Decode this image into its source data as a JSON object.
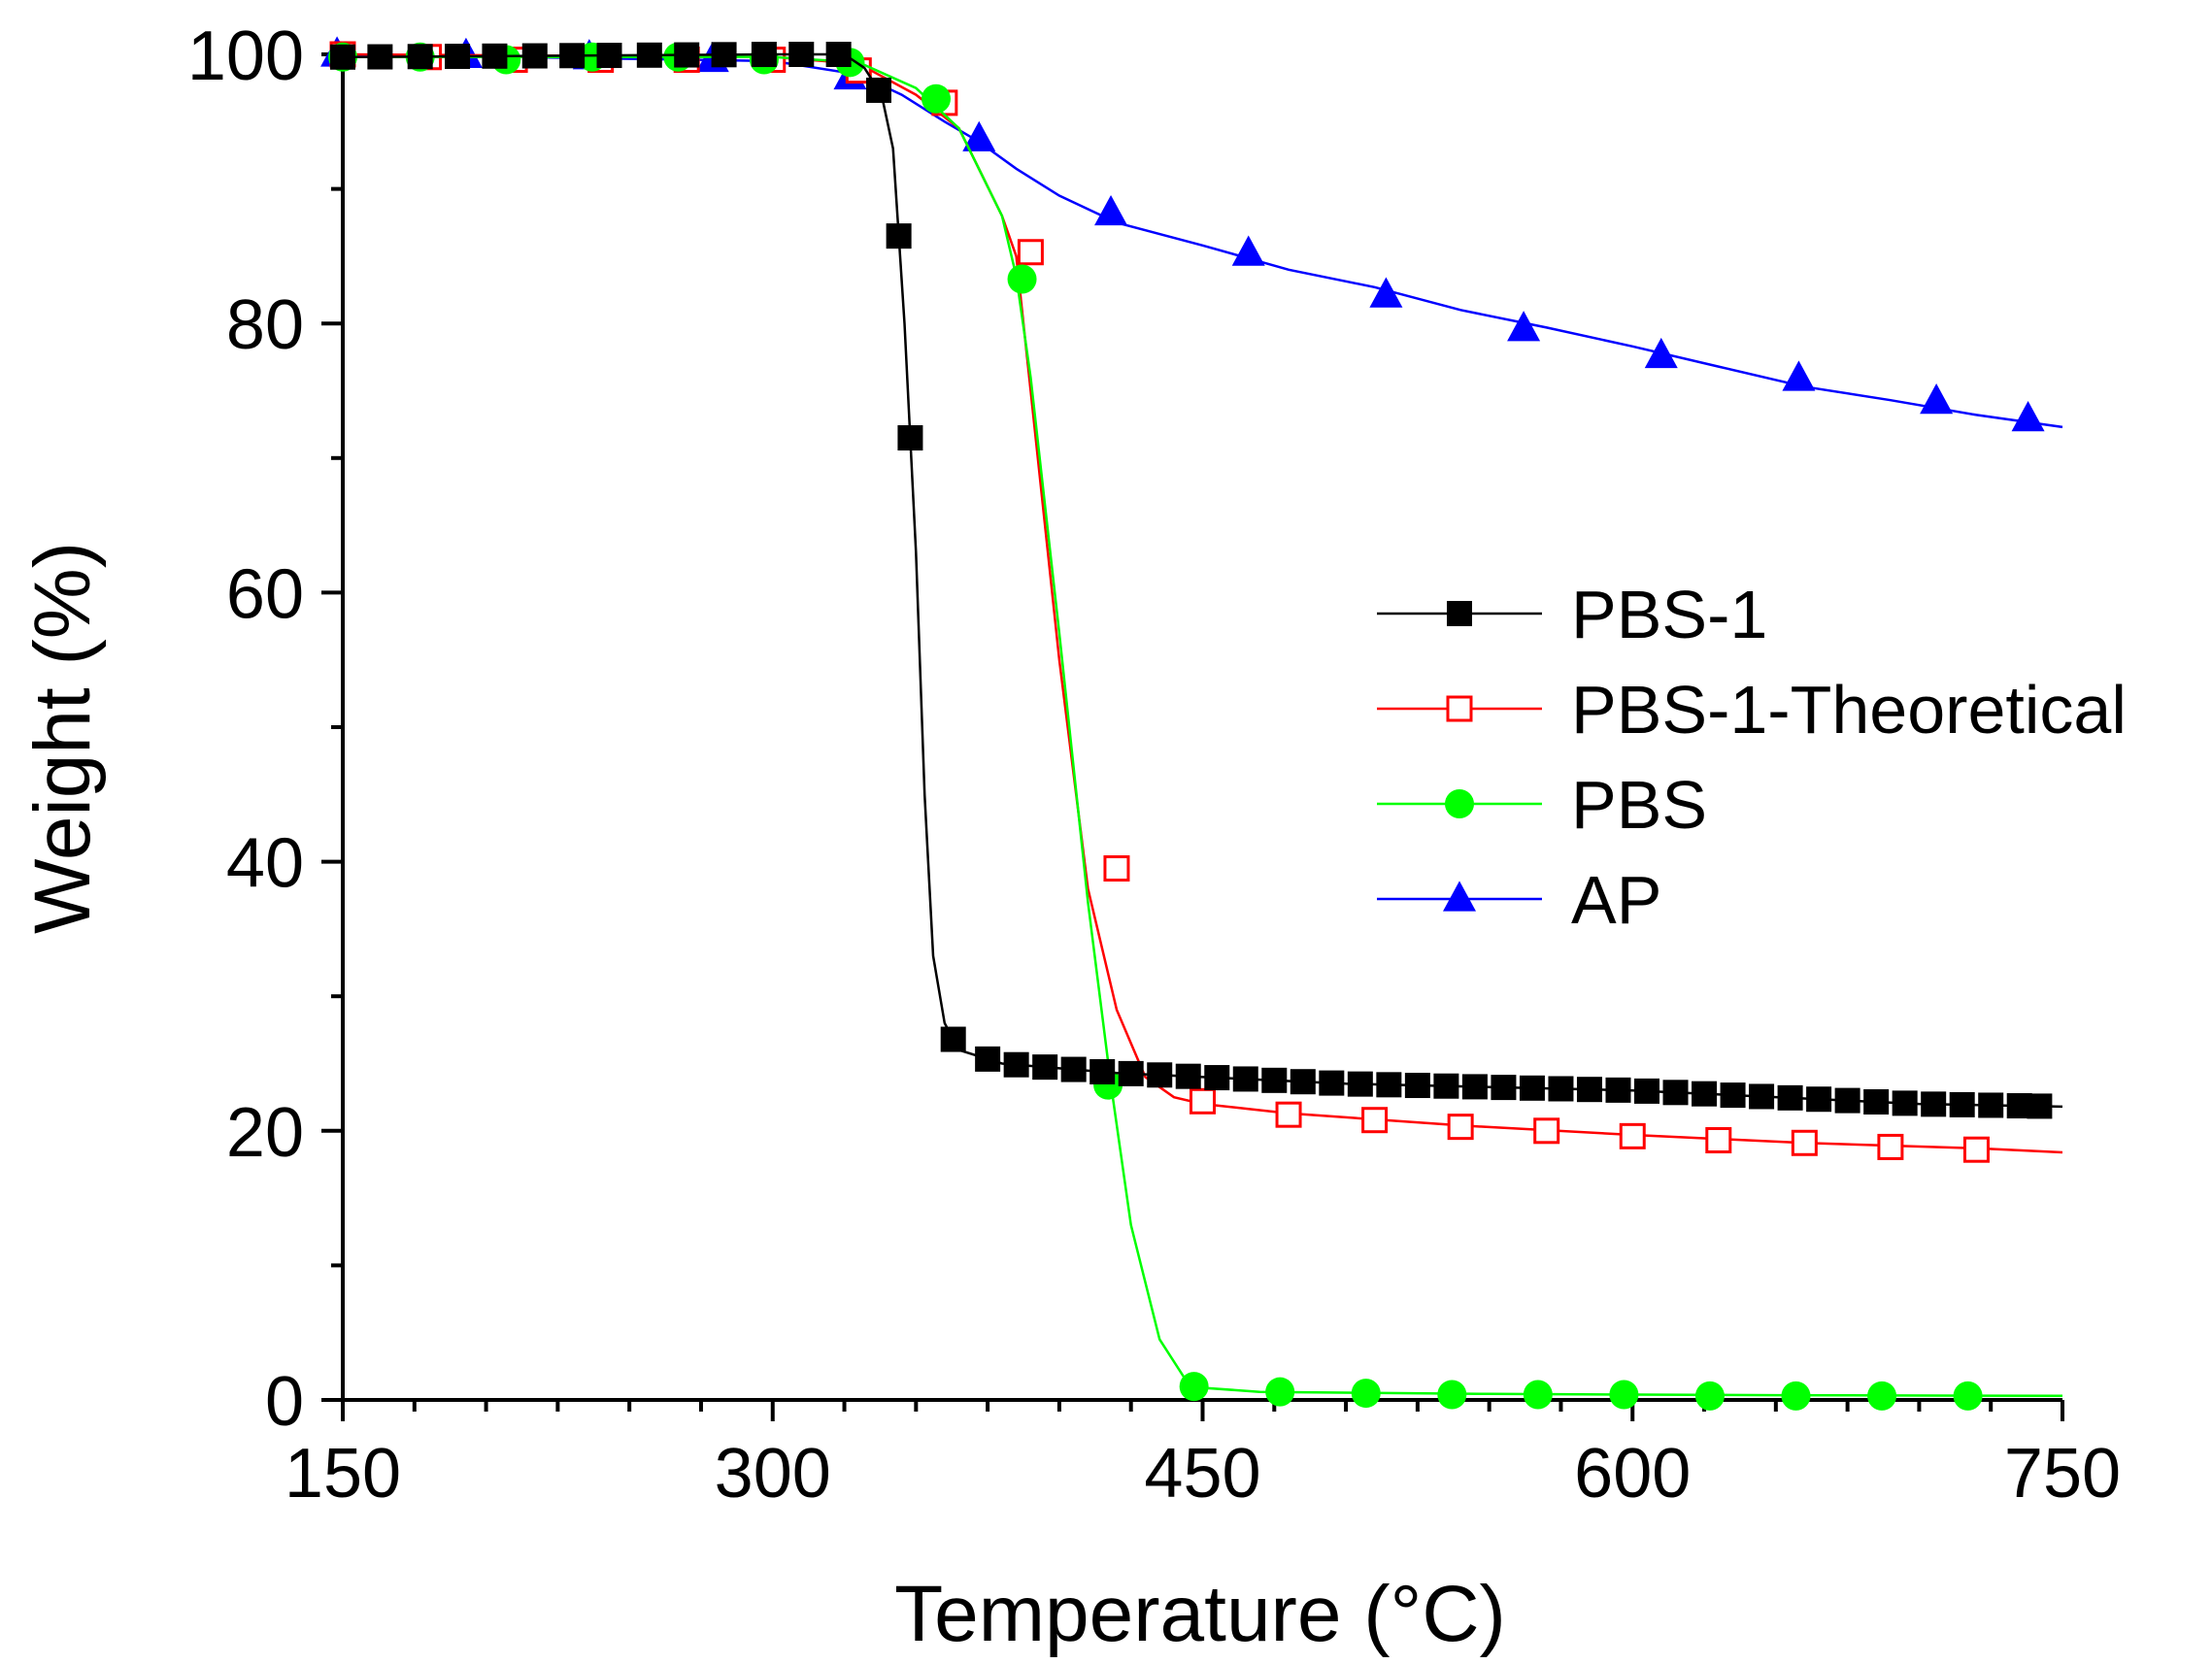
{
  "chart_data": {
    "type": "line",
    "title": "",
    "xlabel": "Temperature (°C)",
    "ylabel": "Weight (%)",
    "xlim": [
      150,
      750
    ],
    "ylim": [
      0,
      100
    ],
    "xticks": [
      150,
      300,
      450,
      600,
      750
    ],
    "yticks": [
      0,
      20,
      40,
      60,
      80,
      100
    ],
    "x_minor_step": 25,
    "y_minor_step": 10,
    "grid": false,
    "legend_position": "center-right",
    "series": [
      {
        "name": "PBS-1",
        "color": "#000000",
        "marker": "square-filled",
        "curve": [
          [
            150,
            99.8
          ],
          [
            300,
            100
          ],
          [
            325,
            100
          ],
          [
            332,
            99
          ],
          [
            338,
            97
          ],
          [
            342,
            93
          ],
          [
            346,
            80
          ],
          [
            350,
            63
          ],
          [
            353,
            45
          ],
          [
            356,
            33
          ],
          [
            360,
            28
          ],
          [
            365,
            26
          ],
          [
            380,
            25
          ],
          [
            420,
            24.3
          ],
          [
            500,
            23.5
          ],
          [
            600,
            23
          ],
          [
            700,
            22
          ],
          [
            750,
            21.8
          ]
        ],
        "markers_x": [
          150,
          163,
          177,
          190,
          203,
          217,
          230,
          243,
          257,
          270,
          283,
          297,
          310,
          323,
          337,
          344,
          348,
          363,
          375,
          385,
          395,
          405,
          415,
          425,
          435,
          445,
          455,
          465,
          475,
          485,
          495,
          505,
          515,
          525,
          535,
          545,
          555,
          565,
          575,
          585,
          595,
          605,
          615,
          625,
          635,
          645,
          655,
          665,
          675,
          685,
          695,
          705,
          715,
          725,
          735,
          742
        ]
      },
      {
        "name": "PBS-1-Theoretical",
        "color": "#ff0000",
        "marker": "square-open",
        "curve": [
          [
            150,
            100
          ],
          [
            300,
            99.8
          ],
          [
            330,
            99.3
          ],
          [
            350,
            97
          ],
          [
            365,
            94.5
          ],
          [
            380,
            88
          ],
          [
            385,
            85
          ],
          [
            390,
            75
          ],
          [
            400,
            55
          ],
          [
            410,
            38
          ],
          [
            420,
            29
          ],
          [
            430,
            24
          ],
          [
            440,
            22.5
          ],
          [
            450,
            22
          ],
          [
            480,
            21.3
          ],
          [
            540,
            20.4
          ],
          [
            600,
            19.7
          ],
          [
            660,
            19.1
          ],
          [
            720,
            18.7
          ],
          [
            750,
            18.4
          ]
        ],
        "markers": [
          [
            150,
            100
          ],
          [
            180,
            99.8
          ],
          [
            210,
            99.6
          ],
          [
            240,
            99.6
          ],
          [
            270,
            99.6
          ],
          [
            300,
            99.6
          ],
          [
            330,
            98.8
          ],
          [
            360,
            96.4
          ],
          [
            390,
            85.3
          ],
          [
            420,
            39.5
          ],
          [
            450,
            22.2
          ],
          [
            480,
            21.2
          ],
          [
            510,
            20.8
          ],
          [
            540,
            20.3
          ],
          [
            570,
            20
          ],
          [
            600,
            19.6
          ],
          [
            630,
            19.3
          ],
          [
            660,
            19.1
          ],
          [
            690,
            18.8
          ],
          [
            720,
            18.6
          ]
        ]
      },
      {
        "name": "PBS",
        "color": "#00ff00",
        "marker": "circle-filled",
        "curve": [
          [
            150,
            99.8
          ],
          [
            300,
            99.8
          ],
          [
            330,
            99.4
          ],
          [
            350,
            97.5
          ],
          [
            365,
            94.5
          ],
          [
            380,
            88
          ],
          [
            385,
            83.5
          ],
          [
            390,
            76
          ],
          [
            400,
            57
          ],
          [
            410,
            37
          ],
          [
            418,
            23.5
          ],
          [
            425,
            13
          ],
          [
            435,
            4.5
          ],
          [
            445,
            1.2
          ],
          [
            450,
            0.9
          ],
          [
            470,
            0.6
          ],
          [
            550,
            0.45
          ],
          [
            650,
            0.35
          ],
          [
            750,
            0.3
          ]
        ],
        "markers": [
          [
            150,
            99.8
          ],
          [
            177,
            99.8
          ],
          [
            207,
            99.6
          ],
          [
            237,
            99.8
          ],
          [
            267,
            99.8
          ],
          [
            297,
            99.6
          ],
          [
            327,
            99.4
          ],
          [
            357,
            96.7
          ],
          [
            387,
            83.3
          ],
          [
            417,
            23.4
          ],
          [
            447,
            1
          ],
          [
            477,
            0.6
          ],
          [
            507,
            0.5
          ],
          [
            537,
            0.4
          ],
          [
            567,
            0.4
          ],
          [
            597,
            0.4
          ],
          [
            627,
            0.3
          ],
          [
            657,
            0.3
          ],
          [
            687,
            0.3
          ],
          [
            717,
            0.3
          ]
        ]
      },
      {
        "name": "AP",
        "color": "#0000ff",
        "marker": "triangle-filled",
        "curve": [
          [
            150,
            100
          ],
          [
            300,
            99.5
          ],
          [
            330,
            98.5
          ],
          [
            345,
            97
          ],
          [
            360,
            95
          ],
          [
            372,
            93.5
          ],
          [
            385,
            91.5
          ],
          [
            400,
            89.5
          ],
          [
            420,
            87.5
          ],
          [
            450,
            85.8
          ],
          [
            480,
            84
          ],
          [
            510,
            82.7
          ],
          [
            540,
            81
          ],
          [
            570,
            79.7
          ],
          [
            600,
            78.3
          ],
          [
            630,
            76.8
          ],
          [
            660,
            75.3
          ],
          [
            690,
            74.3
          ],
          [
            720,
            73.2
          ],
          [
            750,
            72.3
          ]
        ],
        "markers": [
          [
            148,
            100
          ],
          [
            193,
            99.9
          ],
          [
            236,
            99.8
          ],
          [
            279,
            99.6
          ],
          [
            327,
            98.3
          ],
          [
            372,
            93.7
          ],
          [
            418,
            88.2
          ],
          [
            466,
            85.2
          ],
          [
            514,
            82.1
          ],
          [
            562,
            79.6
          ],
          [
            610,
            77.6
          ],
          [
            658,
            75.9
          ],
          [
            706,
            74.2
          ],
          [
            738,
            72.9
          ]
        ]
      }
    ]
  }
}
